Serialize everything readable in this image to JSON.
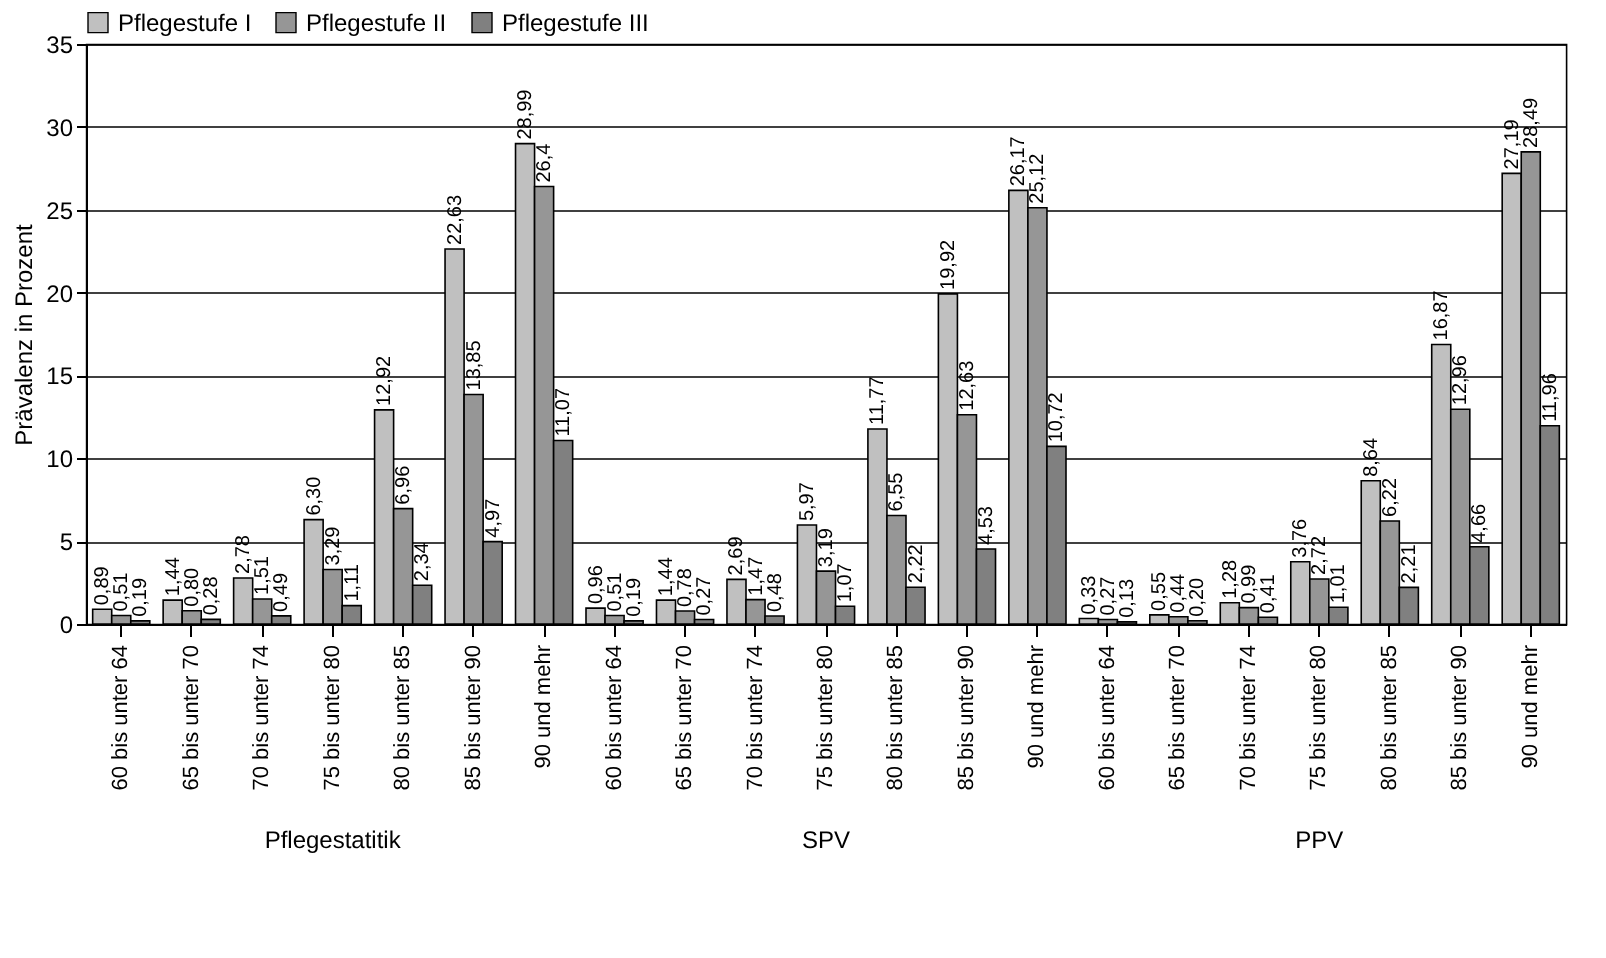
{
  "chart_data": {
    "type": "bar",
    "ylabel": "Prävalenz in Prozent",
    "categories": [
      "60 bis unter 64",
      "65 bis unter 70",
      "70 bis unter 74",
      "75 bis unter 80",
      "80 bis unter 85",
      "85 bis unter 90",
      "90 und mehr",
      "60 bis unter 64",
      "65 bis unter 70",
      "70 bis unter 74",
      "75 bis unter 80",
      "80 bis unter 85",
      "85 bis unter 90",
      "90 und mehr",
      "60 bis unter 64",
      "65 bis unter 70",
      "70 bis unter 74",
      "75 bis unter 80",
      "80 bis unter 85",
      "85 bis unter 90",
      "90 und mehr"
    ],
    "series": [
      {
        "name": "Pflegestufe I",
        "color": "#c0c0c0",
        "values": [
          0.89,
          1.44,
          2.78,
          6.3,
          12.92,
          22.63,
          28.99,
          0.96,
          1.44,
          2.69,
          5.97,
          11.77,
          19.92,
          26.17,
          0.33,
          0.55,
          1.28,
          3.76,
          8.64,
          16.87,
          27.19
        ],
        "value_labels": [
          "0,89",
          "1,44",
          "2,78",
          "6,30",
          "12,92",
          "22,63",
          "28,99",
          "0,96",
          "1,44",
          "2,69",
          "5,97",
          "11,77",
          "19,92",
          "26,17",
          "0,33",
          "0,55",
          "1,28",
          "3,76",
          "8,64",
          "16,87",
          "27,19"
        ]
      },
      {
        "name": "Pflegestufe II",
        "color": "#969696",
        "values": [
          0.51,
          0.8,
          1.51,
          3.29,
          6.96,
          13.85,
          26.4,
          0.51,
          0.78,
          1.47,
          3.19,
          6.55,
          12.63,
          25.12,
          0.27,
          0.44,
          0.99,
          2.72,
          6.22,
          12.96,
          28.49
        ],
        "value_labels": [
          "0,51",
          "0,80",
          "1,51",
          "3,29",
          "6,96",
          "13,85",
          "26,4",
          "0,51",
          "0,78",
          "1,47",
          "3,19",
          "6,55",
          "12,63",
          "25,12",
          "0,27",
          "0,44",
          "0,99",
          "2,72",
          "6,22",
          "12,96",
          "28,49"
        ]
      },
      {
        "name": "Pflegestufe III",
        "color": "#808080",
        "values": [
          0.19,
          0.28,
          0.49,
          1.11,
          2.34,
          4.97,
          11.07,
          0.19,
          0.27,
          0.48,
          1.07,
          2.22,
          4.53,
          10.72,
          0.13,
          0.2,
          0.41,
          1.01,
          2.21,
          4.66,
          11.96
        ],
        "value_labels": [
          "0,19",
          "0,28",
          "0,49",
          "1,11",
          "2,34",
          "4,97",
          "11,07",
          "0,19",
          "0,27",
          "0,48",
          "1,07",
          "2,22",
          "4,53",
          "10,72",
          "0,13",
          "0,20",
          "0,41",
          "1,01",
          "2,21",
          "4,66",
          "11,96"
        ]
      }
    ],
    "annotations": [
      "Pflegestatitik",
      "SPV",
      "PPV"
    ],
    "ylim": [
      0,
      35
    ],
    "yticks": [
      0,
      5,
      10,
      15,
      20,
      25,
      30,
      35
    ],
    "grid": "y",
    "legend": "top"
  }
}
